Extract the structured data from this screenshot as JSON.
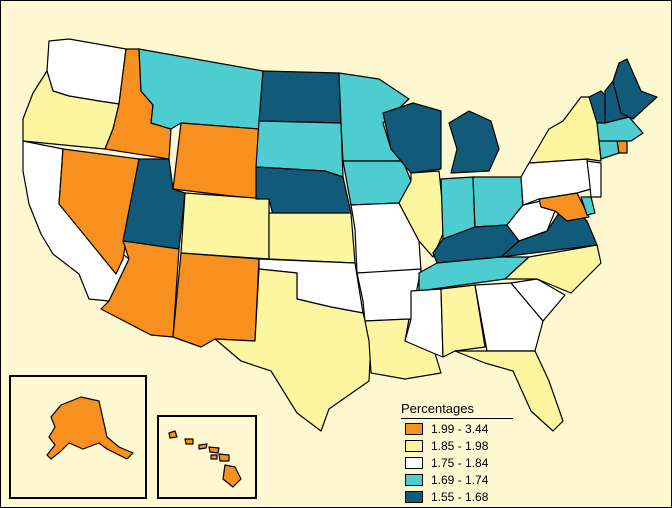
{
  "legend": {
    "title": "Percentages",
    "classes": [
      {
        "label": "1.99 - 3.44",
        "color": "#f7901e"
      },
      {
        "label": "1.85 - 1.98",
        "color": "#fdf6a0"
      },
      {
        "label": "1.75 - 1.84",
        "color": "#ffffff"
      },
      {
        "label": "1.69 - 1.74",
        "color": "#4ecdd0"
      },
      {
        "label": "1.55 - 1.68",
        "color": "#115a79"
      }
    ]
  },
  "states": [
    {
      "name": "Washington",
      "class": 2
    },
    {
      "name": "Oregon",
      "class": 1
    },
    {
      "name": "California",
      "class": 2
    },
    {
      "name": "Idaho",
      "class": 0
    },
    {
      "name": "Nevada",
      "class": 0
    },
    {
      "name": "Montana",
      "class": 3
    },
    {
      "name": "Wyoming",
      "class": 0
    },
    {
      "name": "Utah",
      "class": 4
    },
    {
      "name": "Arizona",
      "class": 0
    },
    {
      "name": "Colorado",
      "class": 1
    },
    {
      "name": "New Mexico",
      "class": 0
    },
    {
      "name": "North Dakota",
      "class": 4
    },
    {
      "name": "South Dakota",
      "class": 3
    },
    {
      "name": "Nebraska",
      "class": 4
    },
    {
      "name": "Kansas",
      "class": 1
    },
    {
      "name": "Oklahoma",
      "class": 2
    },
    {
      "name": "Texas",
      "class": 1
    },
    {
      "name": "Minnesota",
      "class": 3
    },
    {
      "name": "Iowa",
      "class": 3
    },
    {
      "name": "Missouri",
      "class": 2
    },
    {
      "name": "Arkansas",
      "class": 2
    },
    {
      "name": "Louisiana",
      "class": 1
    },
    {
      "name": "Wisconsin",
      "class": 4
    },
    {
      "name": "Illinois",
      "class": 1
    },
    {
      "name": "Michigan",
      "class": 4
    },
    {
      "name": "Indiana",
      "class": 3
    },
    {
      "name": "Ohio",
      "class": 3
    },
    {
      "name": "Kentucky",
      "class": 4
    },
    {
      "name": "Tennessee",
      "class": 3
    },
    {
      "name": "Mississippi",
      "class": 2
    },
    {
      "name": "Alabama",
      "class": 1
    },
    {
      "name": "Georgia",
      "class": 2
    },
    {
      "name": "Florida",
      "class": 1
    },
    {
      "name": "South Carolina",
      "class": 2
    },
    {
      "name": "North Carolina",
      "class": 1
    },
    {
      "name": "Virginia",
      "class": 4
    },
    {
      "name": "West Virginia",
      "class": 2
    },
    {
      "name": "Maryland",
      "class": 0
    },
    {
      "name": "Delaware",
      "class": 3
    },
    {
      "name": "Pennsylvania",
      "class": 2
    },
    {
      "name": "New Jersey",
      "class": 2
    },
    {
      "name": "New York",
      "class": 1
    },
    {
      "name": "Connecticut",
      "class": 3
    },
    {
      "name": "Rhode Island",
      "class": 0
    },
    {
      "name": "Massachusetts",
      "class": 3
    },
    {
      "name": "Vermont",
      "class": 4
    },
    {
      "name": "New Hampshire",
      "class": 4
    },
    {
      "name": "Maine",
      "class": 4
    },
    {
      "name": "Alaska",
      "class": 0
    },
    {
      "name": "Hawaii",
      "class": 0
    }
  ]
}
